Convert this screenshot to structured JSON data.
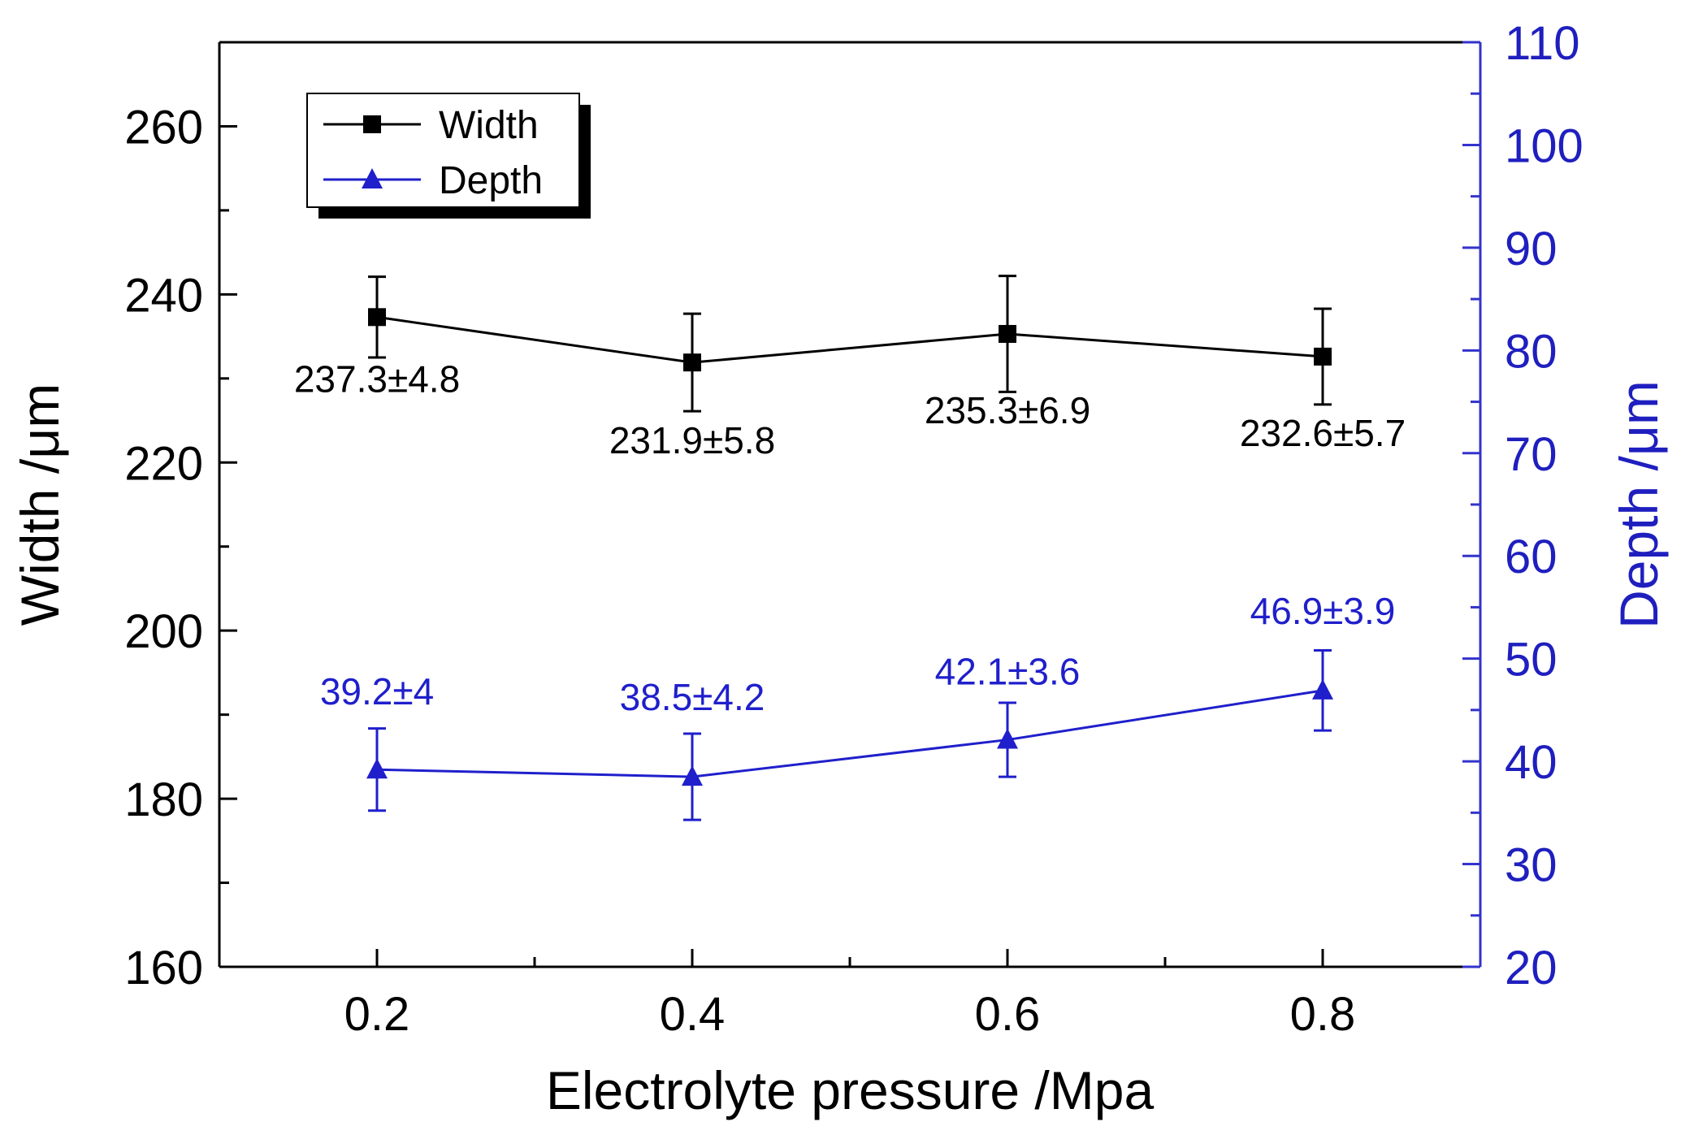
{
  "chart_data": {
    "type": "line",
    "xlabel": "Electrolyte pressure /Mpa",
    "x": [
      0.2,
      0.4,
      0.6,
      0.8
    ],
    "xlim": [
      0.1,
      0.9
    ],
    "x_ticks": [
      0.2,
      0.4,
      0.6,
      0.8
    ],
    "x_tick_labels": [
      "0.2",
      "0.4",
      "0.6",
      "0.8"
    ],
    "y_left": {
      "label": "Width /μm",
      "lim": [
        160,
        270
      ],
      "ticks": [
        160,
        180,
        200,
        220,
        240,
        260
      ],
      "tick_labels": [
        "160",
        "180",
        "200",
        "220",
        "240",
        "260"
      ],
      "color": "#000000"
    },
    "y_right": {
      "label": "Depth /μm",
      "lim": [
        20,
        110
      ],
      "ticks": [
        20,
        30,
        40,
        50,
        60,
        70,
        80,
        90,
        100,
        110
      ],
      "tick_labels": [
        "20",
        "30",
        "40",
        "50",
        "60",
        "70",
        "80",
        "90",
        "100",
        "110"
      ],
      "color": "#1f1fbf"
    },
    "series": [
      {
        "name": "Width",
        "axis": "left",
        "marker": "square",
        "color": "#000000",
        "values": [
          237.3,
          231.9,
          235.3,
          232.6
        ],
        "errors": [
          4.8,
          5.8,
          6.9,
          5.7
        ],
        "labels": [
          "237.3±4.8",
          "231.9±5.8",
          "235.3±6.9",
          "232.6±5.7"
        ]
      },
      {
        "name": "Depth",
        "axis": "right",
        "marker": "triangle",
        "color": "#1f1fcc",
        "values": [
          39.2,
          38.5,
          42.1,
          46.9
        ],
        "errors": [
          4,
          4.2,
          3.6,
          3.9
        ],
        "labels": [
          "39.2±4",
          "38.5±4.2",
          "42.1±3.6",
          "46.9±3.9"
        ]
      }
    ],
    "legend": {
      "position": "top-left",
      "entries": [
        "Width",
        "Depth"
      ]
    }
  }
}
